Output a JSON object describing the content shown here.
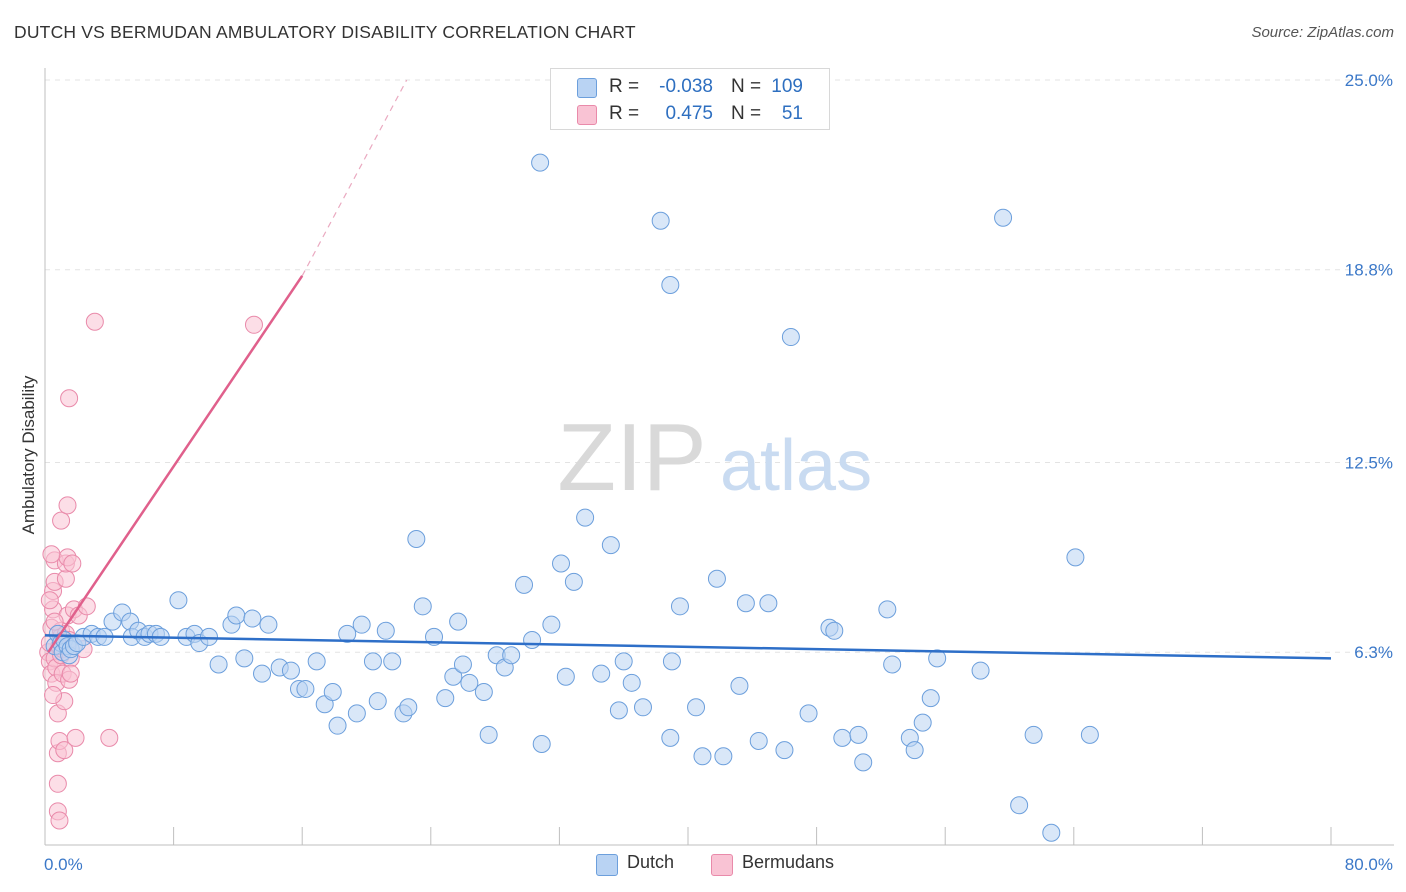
{
  "title": "DUTCH VS BERMUDAN AMBULATORY DISABILITY CORRELATION CHART",
  "source": "Source: ZipAtlas.com",
  "watermark": {
    "zip": "ZIP",
    "atlas": "atlas"
  },
  "legend_top": [
    {
      "r_label": "R =",
      "r_value": "-0.038",
      "n_label": "N =",
      "n_value": "109"
    },
    {
      "r_label": "R =",
      "r_value": "0.475",
      "n_label": "N =",
      "n_value": "51"
    }
  ],
  "legend_bottom": [
    {
      "label": "Dutch"
    },
    {
      "label": "Bermudans"
    }
  ],
  "colors": {
    "dutch_fill": "#b9d3f3",
    "dutch_stroke": "#6c9fdc",
    "dutch_line": "#2e6fc8",
    "bermudan_fill": "#f9c3d4",
    "bermudan_stroke": "#e98aaa",
    "bermudan_line": "#e0608c",
    "axis_text": "#3b78c8",
    "grid": "#e3e3e3"
  },
  "chart_data": {
    "type": "scatter",
    "title": "DUTCH VS BERMUDAN AMBULATORY DISABILITY CORRELATION CHART",
    "xlabel": "",
    "ylabel": "Ambulatory Disability",
    "xlim": [
      0,
      80
    ],
    "ylim": [
      0,
      25
    ],
    "x_tick_labels": [
      "0.0%",
      "80.0%"
    ],
    "y_ticks": [
      6.3,
      12.5,
      18.8,
      25.0
    ],
    "y_tick_labels": [
      "6.3%",
      "12.5%",
      "18.8%",
      "25.0%"
    ],
    "grid": "horizontal dashed",
    "legend_position": "top-center",
    "series": [
      {
        "name": "Dutch",
        "R": -0.038,
        "N": 109,
        "trend": {
          "x": [
            0,
            80
          ],
          "y": [
            6.85,
            6.1
          ]
        },
        "points": [
          [
            0.6,
            6.5
          ],
          [
            0.8,
            6.9
          ],
          [
            1.0,
            6.6
          ],
          [
            1.1,
            6.3
          ],
          [
            1.2,
            6.7
          ],
          [
            1.4,
            6.5
          ],
          [
            1.5,
            6.2
          ],
          [
            1.6,
            6.4
          ],
          [
            1.8,
            6.5
          ],
          [
            2.0,
            6.6
          ],
          [
            2.4,
            6.8
          ],
          [
            2.9,
            6.9
          ],
          [
            3.3,
            6.8
          ],
          [
            3.7,
            6.8
          ],
          [
            4.2,
            7.3
          ],
          [
            4.8,
            7.6
          ],
          [
            5.3,
            7.3
          ],
          [
            5.4,
            6.8
          ],
          [
            5.8,
            7.0
          ],
          [
            6.2,
            6.8
          ],
          [
            6.5,
            6.9
          ],
          [
            6.9,
            6.9
          ],
          [
            7.2,
            6.8
          ],
          [
            8.3,
            8.0
          ],
          [
            8.8,
            6.8
          ],
          [
            9.3,
            6.9
          ],
          [
            9.6,
            6.6
          ],
          [
            10.2,
            6.8
          ],
          [
            10.8,
            5.9
          ],
          [
            11.6,
            7.2
          ],
          [
            11.9,
            7.5
          ],
          [
            12.4,
            6.1
          ],
          [
            12.9,
            7.4
          ],
          [
            13.5,
            5.6
          ],
          [
            13.9,
            7.2
          ],
          [
            14.6,
            5.8
          ],
          [
            15.3,
            5.7
          ],
          [
            15.8,
            5.1
          ],
          [
            16.2,
            5.1
          ],
          [
            16.9,
            6.0
          ],
          [
            17.4,
            4.6
          ],
          [
            17.9,
            5.0
          ],
          [
            18.2,
            3.9
          ],
          [
            18.8,
            6.9
          ],
          [
            19.4,
            4.3
          ],
          [
            19.7,
            7.2
          ],
          [
            20.4,
            6.0
          ],
          [
            20.7,
            4.7
          ],
          [
            21.2,
            7.0
          ],
          [
            21.6,
            6.0
          ],
          [
            22.3,
            4.3
          ],
          [
            22.6,
            4.5
          ],
          [
            23.1,
            10.0
          ],
          [
            23.5,
            7.8
          ],
          [
            24.2,
            6.8
          ],
          [
            24.9,
            4.8
          ],
          [
            25.4,
            5.5
          ],
          [
            25.7,
            7.3
          ],
          [
            26.0,
            5.9
          ],
          [
            26.4,
            5.3
          ],
          [
            27.3,
            5.0
          ],
          [
            27.6,
            3.6
          ],
          [
            28.1,
            6.2
          ],
          [
            28.6,
            5.8
          ],
          [
            29.0,
            6.2
          ],
          [
            29.8,
            8.5
          ],
          [
            30.3,
            6.7
          ],
          [
            30.9,
            3.3
          ],
          [
            31.5,
            7.2
          ],
          [
            32.1,
            9.2
          ],
          [
            32.4,
            5.5
          ],
          [
            32.9,
            8.6
          ],
          [
            33.6,
            10.7
          ],
          [
            34.6,
            5.6
          ],
          [
            35.2,
            9.8
          ],
          [
            35.7,
            4.4
          ],
          [
            36.0,
            6.0
          ],
          [
            36.5,
            5.3
          ],
          [
            37.2,
            4.5
          ],
          [
            38.9,
            3.5
          ],
          [
            39.0,
            6.0
          ],
          [
            39.5,
            7.8
          ],
          [
            40.5,
            4.5
          ],
          [
            40.9,
            2.9
          ],
          [
            41.8,
            8.7
          ],
          [
            42.2,
            2.9
          ],
          [
            43.2,
            5.2
          ],
          [
            43.6,
            7.9
          ],
          [
            44.4,
            3.4
          ],
          [
            45.0,
            7.9
          ],
          [
            46.0,
            3.1
          ],
          [
            46.4,
            16.6
          ],
          [
            47.5,
            4.3
          ],
          [
            48.8,
            7.1
          ],
          [
            49.1,
            7.0
          ],
          [
            49.6,
            3.5
          ],
          [
            50.6,
            3.6
          ],
          [
            50.9,
            2.7
          ],
          [
            52.4,
            7.7
          ],
          [
            52.7,
            5.9
          ],
          [
            53.8,
            3.5
          ],
          [
            54.1,
            3.1
          ],
          [
            54.6,
            4.0
          ],
          [
            55.1,
            4.8
          ],
          [
            55.5,
            6.1
          ],
          [
            58.2,
            5.7
          ],
          [
            59.6,
            20.5
          ],
          [
            60.6,
            1.3
          ],
          [
            61.5,
            3.6
          ],
          [
            62.6,
            0.4
          ],
          [
            64.1,
            9.4
          ],
          [
            65.0,
            3.6
          ],
          [
            38.3,
            20.4
          ],
          [
            38.9,
            18.3
          ],
          [
            30.8,
            22.3
          ]
        ]
      },
      {
        "name": "Bermudans",
        "R": 0.475,
        "N": 51,
        "trend": {
          "x": [
            0.2,
            16.0
          ],
          "y": [
            6.3,
            18.6
          ]
        },
        "trend_extension": {
          "x": [
            16.0,
            22.5
          ],
          "y": [
            18.6,
            25.0
          ]
        },
        "points": [
          [
            0.2,
            6.3
          ],
          [
            0.3,
            6.6
          ],
          [
            0.3,
            6.0
          ],
          [
            0.4,
            5.6
          ],
          [
            0.4,
            7.1
          ],
          [
            0.5,
            7.7
          ],
          [
            0.5,
            8.3
          ],
          [
            0.6,
            8.6
          ],
          [
            0.6,
            9.3
          ],
          [
            0.6,
            6.1
          ],
          [
            0.7,
            5.8
          ],
          [
            0.7,
            5.3
          ],
          [
            0.8,
            4.3
          ],
          [
            0.8,
            3.0
          ],
          [
            0.8,
            2.0
          ],
          [
            0.8,
            1.1
          ],
          [
            0.9,
            0.8
          ],
          [
            0.9,
            3.4
          ],
          [
            1.0,
            6.8
          ],
          [
            1.0,
            7.0
          ],
          [
            1.0,
            6.2
          ],
          [
            1.0,
            10.6
          ],
          [
            1.1,
            5.6
          ],
          [
            1.1,
            6.4
          ],
          [
            1.2,
            4.7
          ],
          [
            1.2,
            3.1
          ],
          [
            1.3,
            6.9
          ],
          [
            1.3,
            8.7
          ],
          [
            1.3,
            9.2
          ],
          [
            1.4,
            9.4
          ],
          [
            1.4,
            7.5
          ],
          [
            1.4,
            11.1
          ],
          [
            1.5,
            6.7
          ],
          [
            1.5,
            5.4
          ],
          [
            1.5,
            14.6
          ],
          [
            1.6,
            6.1
          ],
          [
            1.6,
            5.6
          ],
          [
            1.7,
            9.2
          ],
          [
            1.8,
            7.7
          ],
          [
            1.9,
            3.5
          ],
          [
            2.1,
            7.5
          ],
          [
            2.4,
            6.4
          ],
          [
            2.6,
            7.8
          ],
          [
            0.3,
            8.0
          ],
          [
            0.4,
            9.5
          ],
          [
            0.6,
            7.3
          ],
          [
            0.9,
            6.5
          ],
          [
            3.1,
            17.1
          ],
          [
            4.0,
            3.5
          ],
          [
            13.0,
            17.0
          ],
          [
            0.5,
            4.9
          ]
        ]
      }
    ]
  }
}
